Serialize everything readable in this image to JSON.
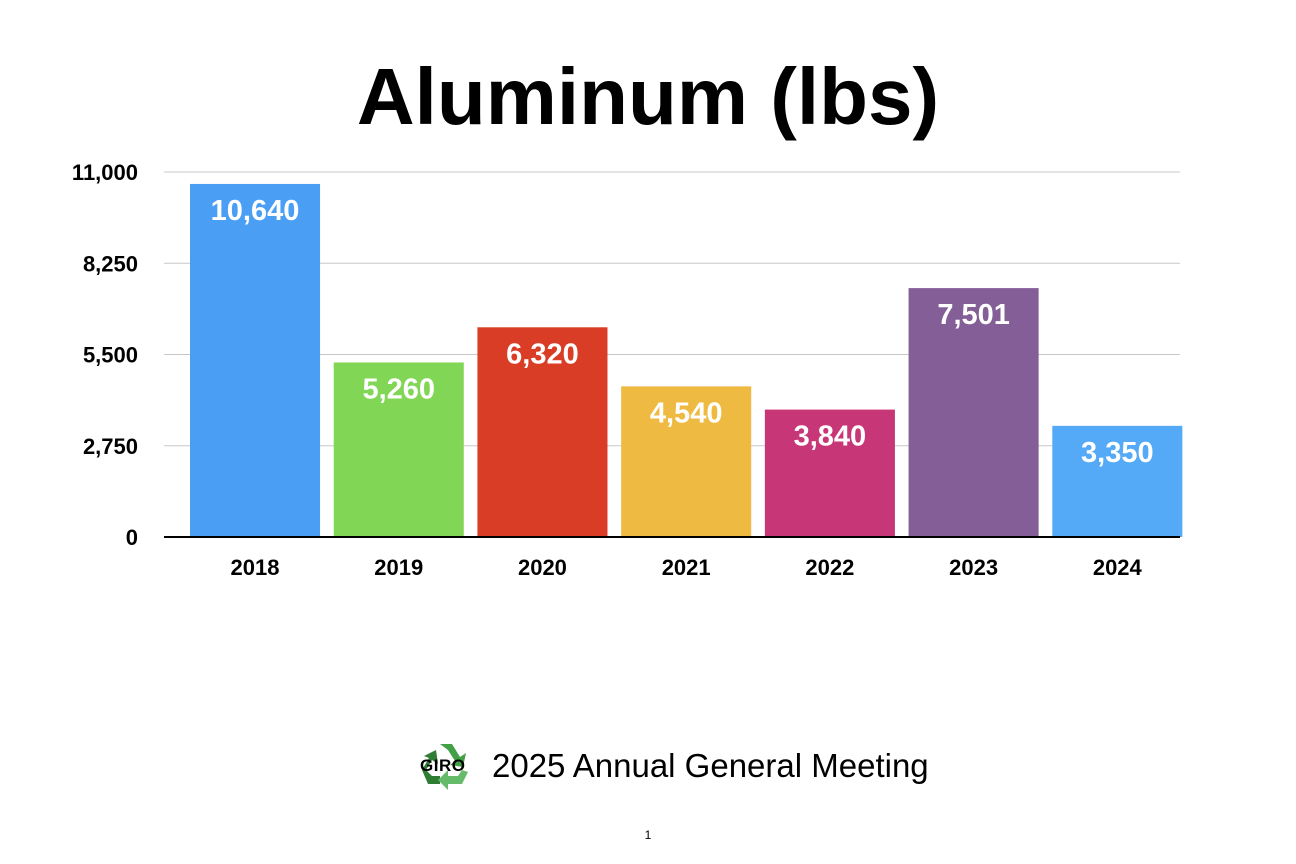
{
  "chart_data": {
    "type": "bar",
    "title": "Aluminum (lbs)",
    "xlabel": "",
    "ylabel": "",
    "categories": [
      "2018",
      "2019",
      "2020",
      "2021",
      "2022",
      "2023",
      "2024"
    ],
    "values": [
      10640,
      5260,
      6320,
      4540,
      3840,
      7501,
      3350
    ],
    "value_labels": [
      "10,640",
      "5,260",
      "6,320",
      "4,540",
      "3,840",
      "7,501",
      "3,350"
    ],
    "colors": [
      "#4a9ff5",
      "#82d656",
      "#d93d26",
      "#eeba42",
      "#c73676",
      "#835e97",
      "#55aaf7"
    ],
    "ylim": [
      0,
      11000
    ],
    "yticks": [
      0,
      2750,
      5500,
      8250,
      11000
    ],
    "ytick_labels": [
      "0",
      "2,750",
      "5,500",
      "8,250",
      "11,000"
    ],
    "grid": true,
    "legend": "none"
  },
  "footer": {
    "logo_text": "GIRO",
    "meeting": "2025 Annual General Meeting",
    "page_number": "1"
  }
}
